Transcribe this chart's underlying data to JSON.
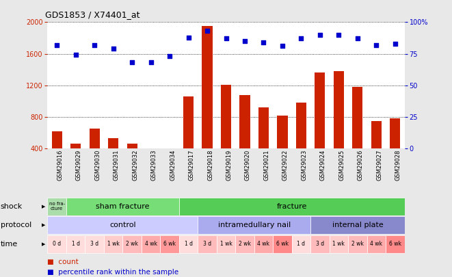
{
  "title": "GDS1853 / X74401_at",
  "samples": [
    "GSM29016",
    "GSM29029",
    "GSM29030",
    "GSM29031",
    "GSM29032",
    "GSM29033",
    "GSM29034",
    "GSM29017",
    "GSM29018",
    "GSM29019",
    "GSM29020",
    "GSM29021",
    "GSM29022",
    "GSM29023",
    "GSM29024",
    "GSM29025",
    "GSM29026",
    "GSM29027",
    "GSM29028"
  ],
  "counts": [
    620,
    460,
    650,
    530,
    460,
    390,
    390,
    1060,
    1950,
    1210,
    1080,
    920,
    820,
    980,
    1360,
    1380,
    1180,
    750,
    780
  ],
  "percentile": [
    82,
    74,
    82,
    79,
    68,
    68,
    73,
    88,
    93,
    87,
    85,
    84,
    81,
    87,
    90,
    90,
    87,
    82,
    83
  ],
  "bar_color": "#cc2200",
  "dot_color": "#0000cc",
  "ylim_left": [
    400,
    2000
  ],
  "ylim_right": [
    0,
    100
  ],
  "yticks_left": [
    400,
    800,
    1200,
    1600,
    2000
  ],
  "yticks_right": [
    0,
    25,
    50,
    75,
    100
  ],
  "grid_values": [
    800,
    1200,
    1600
  ],
  "background_color": "#e8e8e8",
  "plot_bg": "#ffffff",
  "shock_items": [
    {
      "label": "no fra-\ncture",
      "start": 0,
      "end": 1,
      "color": "#aaddaa"
    },
    {
      "label": "sham fracture",
      "start": 1,
      "end": 7,
      "color": "#77dd77"
    },
    {
      "label": "fracture",
      "start": 7,
      "end": 19,
      "color": "#55cc55"
    }
  ],
  "protocol_items": [
    {
      "label": "control",
      "start": 0,
      "end": 8,
      "color": "#ccccff"
    },
    {
      "label": "intramedullary nail",
      "start": 8,
      "end": 14,
      "color": "#aaaaee"
    },
    {
      "label": "internal plate",
      "start": 14,
      "end": 19,
      "color": "#8888cc"
    }
  ],
  "time_labels": [
    "0 d",
    "1 d",
    "3 d",
    "1 wk",
    "2 wk",
    "4 wk",
    "6 wk",
    "1 d",
    "3 d",
    "1 wk",
    "2 wk",
    "4 wk",
    "6 wk",
    "1 d",
    "3 d",
    "1 wk",
    "2 wk",
    "4 wk",
    "6 wk"
  ],
  "time_colors": [
    "#ffdddd",
    "#ffdddd",
    "#ffdddd",
    "#ffcccc",
    "#ffbbbb",
    "#ffaaaa",
    "#ff9999",
    "#ffdddd",
    "#ffbbbb",
    "#ffcccc",
    "#ffbbbb",
    "#ffaaaa",
    "#ff8888",
    "#ffdddd",
    "#ffbbbb",
    "#ffcccc",
    "#ffbbbb",
    "#ffaaaa",
    "#ff8888"
  ],
  "legend_count_color": "#cc2200",
  "legend_dot_color": "#0000cc",
  "title_fontsize": 9,
  "tick_fontsize": 7,
  "ann_fontsize": 8,
  "sample_fontsize": 6,
  "legend_fontsize": 7.5
}
